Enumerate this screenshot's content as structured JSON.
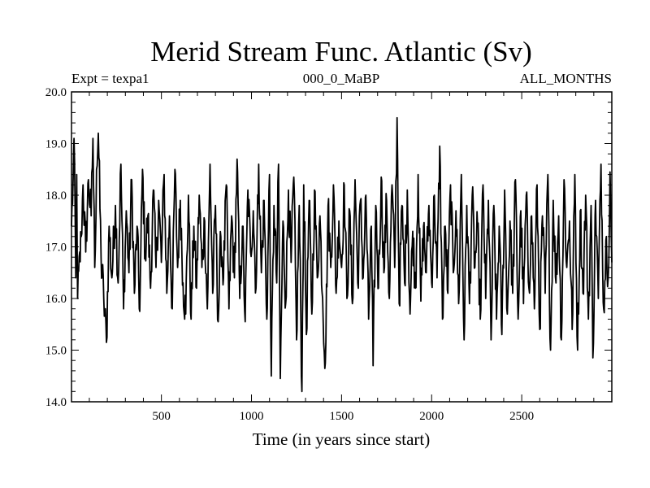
{
  "chart_data": {
    "type": "line",
    "title": "Merid Stream Func. Atlantic (Sv)",
    "subtitles": {
      "left": "Expt = texpa1",
      "center": "000_0_MaBP",
      "right": "ALL_MONTHS"
    },
    "xlabel": "Time (in years since start)",
    "ylabel": "",
    "xlim": [
      1,
      3000
    ],
    "ylim": [
      14.0,
      20.0
    ],
    "x_ticks": [
      "500",
      "1000",
      "1500",
      "2000",
      "2500"
    ],
    "y_ticks": [
      "14.0",
      "15.0",
      "16.0",
      "17.0",
      "18.0",
      "19.0",
      "20.0"
    ],
    "grid": false,
    "line_color": "#000000",
    "series": [
      {
        "mean": 17.05,
        "points": [
          [
            1,
            17.4
          ],
          [
            10,
            18.3
          ],
          [
            15,
            19.1
          ],
          [
            25,
            16.4
          ],
          [
            30,
            18.4
          ],
          [
            35,
            16.0
          ],
          [
            55,
            17.2
          ],
          [
            65,
            18.2
          ],
          [
            80,
            16.9
          ],
          [
            95,
            18.3
          ],
          [
            110,
            17.6
          ],
          [
            120,
            19.1
          ],
          [
            130,
            16.6
          ],
          [
            140,
            18.5
          ],
          [
            150,
            19.2
          ],
          [
            165,
            16.8
          ],
          [
            180,
            16.0
          ],
          [
            195,
            15.15
          ],
          [
            210,
            17.4
          ],
          [
            225,
            16.4
          ],
          [
            245,
            17.8
          ],
          [
            260,
            16.3
          ],
          [
            275,
            18.6
          ],
          [
            290,
            15.8
          ],
          [
            305,
            17.7
          ],
          [
            320,
            16.5
          ],
          [
            335,
            18.3
          ],
          [
            350,
            16.1
          ],
          [
            365,
            17.4
          ],
          [
            380,
            15.75
          ],
          [
            395,
            18.5
          ],
          [
            410,
            16.8
          ],
          [
            425,
            17.6
          ],
          [
            440,
            16.2
          ],
          [
            455,
            18.1
          ],
          [
            470,
            16.6
          ],
          [
            485,
            17.9
          ],
          [
            500,
            16.7
          ],
          [
            515,
            18.4
          ],
          [
            530,
            16.1
          ],
          [
            545,
            17.6
          ],
          [
            560,
            15.8
          ],
          [
            575,
            18.5
          ],
          [
            590,
            16.6
          ],
          [
            605,
            17.9
          ],
          [
            620,
            16.3
          ],
          [
            635,
            15.7
          ],
          [
            650,
            18.0
          ],
          [
            665,
            15.6
          ],
          [
            680,
            17.4
          ],
          [
            695,
            16.2
          ],
          [
            710,
            18.0
          ],
          [
            725,
            16.6
          ],
          [
            740,
            17.5
          ],
          [
            755,
            15.8
          ],
          [
            770,
            18.6
          ],
          [
            785,
            16.1
          ],
          [
            800,
            17.8
          ],
          [
            815,
            15.55
          ],
          [
            830,
            17.2
          ],
          [
            845,
            16.4
          ],
          [
            860,
            18.2
          ],
          [
            875,
            15.8
          ],
          [
            890,
            17.6
          ],
          [
            905,
            16.4
          ],
          [
            920,
            18.7
          ],
          [
            935,
            16.0
          ],
          [
            950,
            17.4
          ],
          [
            965,
            15.55
          ],
          [
            980,
            18.1
          ],
          [
            995,
            16.9
          ],
          [
            1010,
            17.7
          ],
          [
            1025,
            16.2
          ],
          [
            1040,
            18.6
          ],
          [
            1055,
            16.5
          ],
          [
            1070,
            17.9
          ],
          [
            1085,
            15.6
          ],
          [
            1100,
            18.4
          ],
          [
            1110,
            14.5
          ],
          [
            1125,
            17.8
          ],
          [
            1140,
            16.3
          ],
          [
            1150,
            18.6
          ],
          [
            1160,
            14.45
          ],
          [
            1175,
            17.5
          ],
          [
            1190,
            15.9
          ],
          [
            1205,
            18.1
          ],
          [
            1220,
            16.7
          ],
          [
            1235,
            18.35
          ],
          [
            1250,
            15.2
          ],
          [
            1265,
            17.8
          ],
          [
            1280,
            14.2
          ],
          [
            1290,
            18.2
          ],
          [
            1305,
            15.3
          ],
          [
            1320,
            17.9
          ],
          [
            1335,
            15.7
          ],
          [
            1350,
            18.1
          ],
          [
            1365,
            16.4
          ],
          [
            1380,
            17.6
          ],
          [
            1395,
            16.0
          ],
          [
            1410,
            14.75
          ],
          [
            1425,
            17.8
          ],
          [
            1440,
            16.6
          ],
          [
            1455,
            18.2
          ],
          [
            1470,
            16.1
          ],
          [
            1485,
            17.5
          ],
          [
            1500,
            16.6
          ],
          [
            1515,
            18.2
          ],
          [
            1530,
            16.0
          ],
          [
            1545,
            17.7
          ],
          [
            1560,
            15.9
          ],
          [
            1575,
            18.3
          ],
          [
            1590,
            16.3
          ],
          [
            1605,
            17.9
          ],
          [
            1620,
            16.4
          ],
          [
            1635,
            18.0
          ],
          [
            1650,
            15.6
          ],
          [
            1665,
            17.4
          ],
          [
            1675,
            14.7
          ],
          [
            1690,
            17.8
          ],
          [
            1705,
            16.2
          ],
          [
            1720,
            18.35
          ],
          [
            1735,
            16.5
          ],
          [
            1750,
            17.9
          ],
          [
            1765,
            16.0
          ],
          [
            1780,
            18.2
          ],
          [
            1795,
            16.6
          ],
          [
            1808,
            19.5
          ],
          [
            1820,
            15.9
          ],
          [
            1835,
            17.8
          ],
          [
            1850,
            16.3
          ],
          [
            1865,
            18.1
          ],
          [
            1880,
            15.7
          ],
          [
            1895,
            17.3
          ],
          [
            1910,
            16.2
          ],
          [
            1925,
            18.4
          ],
          [
            1940,
            15.95
          ],
          [
            1955,
            17.4
          ],
          [
            1970,
            16.5
          ],
          [
            1985,
            17.8
          ],
          [
            2000,
            16.3
          ],
          [
            2015,
            18.0
          ],
          [
            2030,
            16.4
          ],
          [
            2045,
            18.95
          ],
          [
            2060,
            15.6
          ],
          [
            2075,
            17.4
          ],
          [
            2090,
            16.1
          ],
          [
            2105,
            18.2
          ],
          [
            2120,
            16.5
          ],
          [
            2135,
            17.7
          ],
          [
            2150,
            15.9
          ],
          [
            2165,
            18.4
          ],
          [
            2180,
            15.2
          ],
          [
            2195,
            17.8
          ],
          [
            2210,
            15.9
          ],
          [
            2225,
            18.0
          ],
          [
            2240,
            16.6
          ],
          [
            2255,
            17.4
          ],
          [
            2270,
            15.6
          ],
          [
            2285,
            18.2
          ],
          [
            2300,
            16.0
          ],
          [
            2315,
            17.9
          ],
          [
            2330,
            15.2
          ],
          [
            2345,
            17.8
          ],
          [
            2360,
            15.6
          ],
          [
            2375,
            17.4
          ],
          [
            2390,
            15.3
          ],
          [
            2405,
            18.1
          ],
          [
            2420,
            15.7
          ],
          [
            2435,
            17.5
          ],
          [
            2450,
            16.1
          ],
          [
            2465,
            18.3
          ],
          [
            2480,
            15.6
          ],
          [
            2495,
            17.7
          ],
          [
            2510,
            15.9
          ],
          [
            2525,
            18.0
          ],
          [
            2540,
            16.2
          ],
          [
            2555,
            17.6
          ],
          [
            2570,
            15.8
          ],
          [
            2585,
            18.2
          ],
          [
            2600,
            15.4
          ],
          [
            2615,
            17.6
          ],
          [
            2630,
            16.1
          ],
          [
            2645,
            18.4
          ],
          [
            2660,
            15.0
          ],
          [
            2675,
            17.9
          ],
          [
            2690,
            16.3
          ],
          [
            2705,
            17.6
          ],
          [
            2720,
            15.2
          ],
          [
            2735,
            18.3
          ],
          [
            2750,
            16.6
          ],
          [
            2765,
            17.5
          ],
          [
            2780,
            15.4
          ],
          [
            2795,
            18.4
          ],
          [
            2810,
            15.0
          ],
          [
            2825,
            17.7
          ],
          [
            2840,
            16.1
          ],
          [
            2855,
            18.0
          ],
          [
            2870,
            15.6
          ],
          [
            2885,
            17.8
          ],
          [
            2895,
            14.85
          ],
          [
            2910,
            17.9
          ],
          [
            2925,
            16.0
          ],
          [
            2940,
            18.6
          ],
          [
            2955,
            15.8
          ],
          [
            2970,
            17.2
          ],
          [
            2980,
            16.4
          ],
          [
            2990,
            18.45
          ],
          [
            3000,
            16.7
          ]
        ]
      }
    ]
  }
}
